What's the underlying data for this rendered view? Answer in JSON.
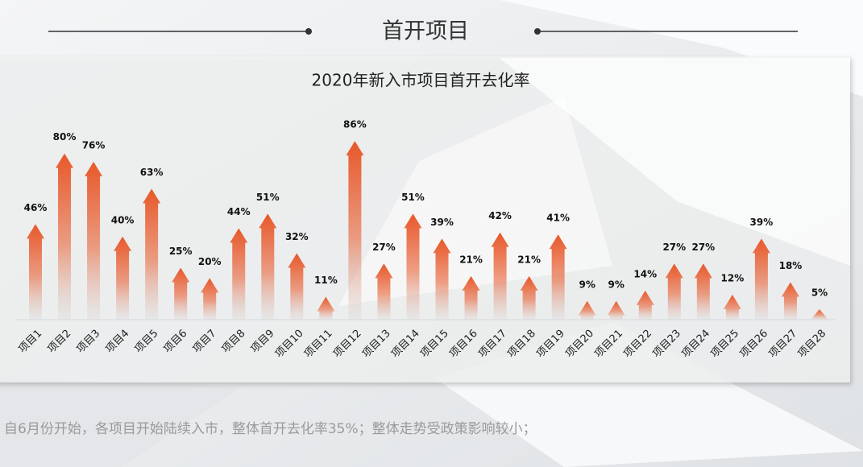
{
  "header": {
    "title": "首开项目"
  },
  "chart_data": {
    "type": "bar",
    "title": "2020年新入市项目首开去化率",
    "categories": [
      "项目1",
      "项目2",
      "项目3",
      "项目4",
      "项目5",
      "项目6",
      "项目7",
      "项目8",
      "项目9",
      "项目10",
      "项目11",
      "项目12",
      "项目13",
      "项目14",
      "项目15",
      "项目16",
      "项目17",
      "项目18",
      "项目19",
      "项目20",
      "项目21",
      "项目22",
      "项目23",
      "项目24",
      "项目25",
      "项目26",
      "项目27",
      "项目28"
    ],
    "values": [
      46,
      80,
      76,
      40,
      63,
      25,
      20,
      44,
      51,
      32,
      11,
      86,
      27,
      51,
      39,
      21,
      42,
      21,
      41,
      9,
      9,
      14,
      27,
      27,
      12,
      39,
      18,
      5
    ],
    "value_labels": [
      "46%",
      "80%",
      "76%",
      "40%",
      "63%",
      "25%",
      "20%",
      "44%",
      "51%",
      "32%",
      "11%",
      "86%",
      "27%",
      "51%",
      "39%",
      "21%",
      "42%",
      "21%",
      "41%",
      "9%",
      "9%",
      "14%",
      "27%",
      "27%",
      "12%",
      "39%",
      "18%",
      "5%"
    ],
    "color": "#e8582a"
  },
  "footnote": "自6月份开始，各项目开始陆续入市，整体首开去化率35%；整体走势受政策影响较小；"
}
